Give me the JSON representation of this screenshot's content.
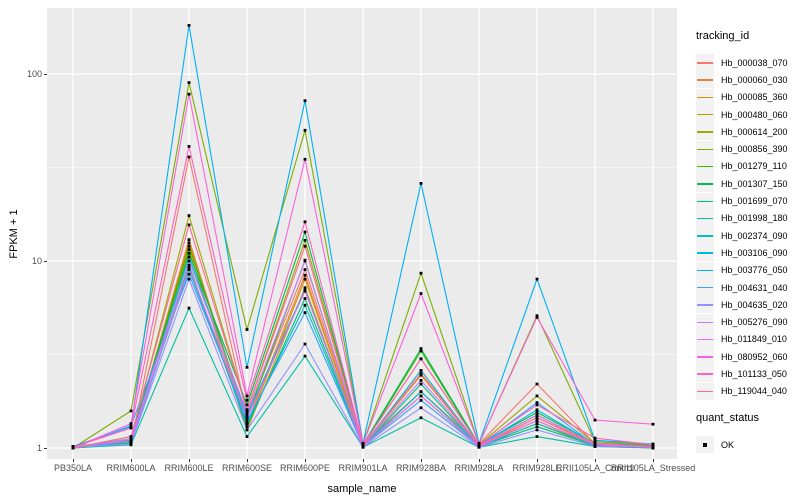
{
  "chart_data": {
    "type": "line",
    "title": "",
    "xlabel": "sample_name",
    "ylabel": "FPKM + 1",
    "y_scale": "log10",
    "y_ticks": [
      1,
      10,
      100
    ],
    "y_minor_ticks": [
      3.1623,
      31.623
    ],
    "ylim": [
      1,
      224
    ],
    "grid": "on",
    "legend_position": "right",
    "legend_title": "tracking_id",
    "quant_legend_title": "quant_status",
    "quant_status_value": "OK",
    "panel_bg": "#EBEBEB",
    "gridline_color": "#FFFFFF",
    "point_color": "#000000",
    "axis_text_color": "#4D4D4D",
    "categories": [
      "PB350LA",
      "RRIM600LA",
      "RRIM600LE",
      "RRIM600SE",
      "RRIM600PE",
      "RRIM901LA",
      "RRIM928BA",
      "RRIM928LA",
      "RRIM928LE",
      "RRII105LA_Control",
      "RRII105LA_Stressed"
    ],
    "series": [
      {
        "name": "Hb_000038_070",
        "color": "#F8766D",
        "values": [
          1.0,
          1.05,
          36,
          1.5,
          9.0,
          1.05,
          2.0,
          1.05,
          2.2,
          1.05,
          1.02
        ]
      },
      {
        "name": "Hb_000060_030",
        "color": "#EA8331",
        "values": [
          1.0,
          1.08,
          13,
          1.35,
          8.4,
          1.02,
          2.6,
          1.02,
          1.45,
          1.04,
          1.02
        ]
      },
      {
        "name": "Hb_000085_360",
        "color": "#D89000",
        "values": [
          1.02,
          1.1,
          12.5,
          1.3,
          8.0,
          1.03,
          2.45,
          1.03,
          1.4,
          1.03,
          1.01
        ]
      },
      {
        "name": "Hb_000480_060",
        "color": "#C09B00",
        "values": [
          1.0,
          1.05,
          11.5,
          1.25,
          7.2,
          1.02,
          1.9,
          1.02,
          1.35,
          1.02,
          1.0
        ]
      },
      {
        "name": "Hb_000614_200",
        "color": "#A3A500",
        "values": [
          1.01,
          1.12,
          17.5,
          1.6,
          12.9,
          1.04,
          3.0,
          1.04,
          1.9,
          1.06,
          1.03
        ]
      },
      {
        "name": "Hb_000856_390",
        "color": "#7CAE00",
        "values": [
          1.0,
          1.58,
          90,
          4.3,
          50,
          1.05,
          8.6,
          1.05,
          5.1,
          1.08,
          1.04
        ]
      },
      {
        "name": "Hb_001279_110",
        "color": "#39B600",
        "values": [
          1.02,
          1.1,
          12,
          1.45,
          10.1,
          1.03,
          3.3,
          1.03,
          1.5,
          1.05,
          1.02
        ]
      },
      {
        "name": "Hb_001307_150",
        "color": "#00BB4E",
        "values": [
          1.0,
          1.15,
          11,
          1.7,
          14.3,
          1.04,
          3.4,
          1.04,
          1.55,
          1.06,
          1.03
        ]
      },
      {
        "name": "Hb_001699_070",
        "color": "#00BF7D",
        "values": [
          1.01,
          1.06,
          9.5,
          1.3,
          6.3,
          1.02,
          2.2,
          1.02,
          1.3,
          1.03,
          1.01
        ]
      },
      {
        "name": "Hb_001998_180",
        "color": "#00C1A3",
        "values": [
          1.0,
          1.04,
          5.6,
          1.15,
          3.1,
          1.01,
          1.45,
          1.01,
          1.15,
          1.02,
          1.0
        ]
      },
      {
        "name": "Hb_002374_090",
        "color": "#00BFC4",
        "values": [
          1.01,
          1.07,
          9.0,
          1.35,
          5.8,
          1.02,
          2.0,
          1.02,
          1.35,
          1.04,
          1.02
        ]
      },
      {
        "name": "Hb_003106_090",
        "color": "#00BAE0",
        "values": [
          1.0,
          1.1,
          10.5,
          1.5,
          7.0,
          1.03,
          2.6,
          1.03,
          1.6,
          1.05,
          1.02
        ]
      },
      {
        "name": "Hb_003776_050",
        "color": "#00B0F6",
        "values": [
          1.02,
          1.3,
          182,
          2.7,
          72,
          1.06,
          26,
          1.06,
          8.0,
          1.1,
          1.05
        ]
      },
      {
        "name": "Hb_004631_040",
        "color": "#35A2FF",
        "values": [
          1.0,
          1.32,
          8.5,
          1.4,
          5.3,
          1.02,
          1.8,
          1.02,
          1.75,
          1.04,
          1.02
        ]
      },
      {
        "name": "Hb_004635_020",
        "color": "#9590FF",
        "values": [
          1.01,
          1.05,
          8.0,
          1.25,
          3.6,
          1.01,
          1.64,
          1.01,
          1.25,
          1.02,
          1.01
        ]
      },
      {
        "name": "Hb_005276_090",
        "color": "#C77CFF",
        "values": [
          1.0,
          1.12,
          10,
          1.55,
          10,
          1.03,
          2.3,
          1.03,
          1.5,
          1.05,
          1.02
        ]
      },
      {
        "name": "Hb_011849_010",
        "color": "#E76BF3",
        "values": [
          1.02,
          1.09,
          9.2,
          1.45,
          6.9,
          1.02,
          1.9,
          1.02,
          1.4,
          1.04,
          1.01
        ]
      },
      {
        "name": "Hb_080952_060",
        "color": "#FA62DB",
        "values": [
          1.0,
          1.35,
          78,
          1.9,
          35,
          1.05,
          6.7,
          1.05,
          5.0,
          1.41,
          1.34
        ]
      },
      {
        "name": "Hb_101133_050",
        "color": "#FF62BC",
        "values": [
          1.01,
          1.28,
          41,
          1.8,
          16.2,
          1.04,
          3.0,
          1.04,
          1.7,
          1.13,
          1.04
        ]
      },
      {
        "name": "Hb_119044_040",
        "color": "#FF6A98",
        "values": [
          1.0,
          1.15,
          15.6,
          1.6,
          12,
          1.03,
          2.5,
          1.03,
          1.45,
          1.06,
          1.02
        ]
      }
    ]
  }
}
